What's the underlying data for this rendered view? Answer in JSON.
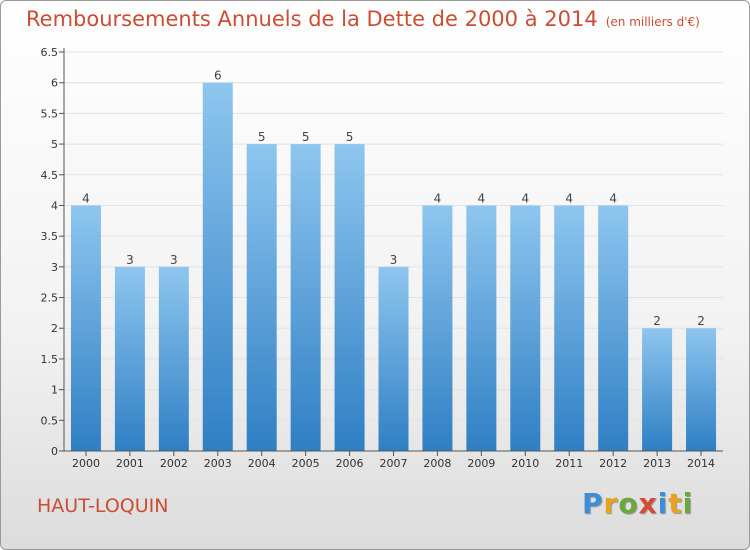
{
  "title": "Remboursements Annuels de la Dette de 2000 à 2014",
  "subtitle": "(en milliers d'€)",
  "commune": "HAUT-LOQUIN",
  "logo_text": "Proxiti",
  "colors": {
    "title": "#cc4d33",
    "bar_light": "#8ec6ef",
    "bar_dark": "#2f7fc4"
  },
  "chart_data": {
    "type": "bar",
    "title": "Remboursements Annuels de la Dette de 2000 à 2014",
    "subtitle": "(en milliers d'€)",
    "categories": [
      "2000",
      "2001",
      "2002",
      "2003",
      "2004",
      "2005",
      "2006",
      "2007",
      "2008",
      "2009",
      "2010",
      "2011",
      "2012",
      "2013",
      "2014"
    ],
    "values": [
      4,
      3,
      3,
      6,
      5,
      5,
      5,
      3,
      4,
      4,
      4,
      4,
      4,
      2,
      2
    ],
    "data_labels": [
      "4",
      "3",
      "3",
      "6",
      "5",
      "5",
      "5",
      "3",
      "4",
      "4",
      "4",
      "4",
      "4",
      "2",
      "2"
    ],
    "y_ticks": [
      "0",
      "0.5",
      "1",
      "1.5",
      "2",
      "2.5",
      "3",
      "3.5",
      "4",
      "4.5",
      "5",
      "5.5",
      "6",
      "6.5"
    ],
    "ylim": [
      0,
      6.5
    ],
    "grid": true,
    "legend": "none"
  }
}
